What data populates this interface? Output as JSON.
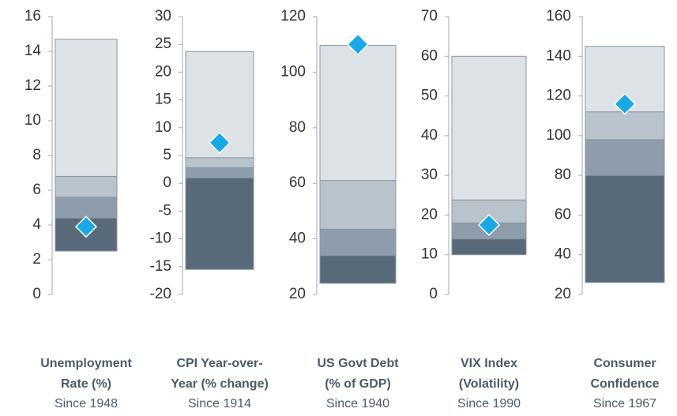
{
  "chart_data": [
    {
      "type": "range-bar",
      "title": [
        "Unemployment",
        "Rate (%)"
      ],
      "subtitle": "Since 1948",
      "ylim": [
        0,
        16
      ],
      "yticks": [
        0,
        2,
        4,
        6,
        8,
        10,
        12,
        14,
        16
      ],
      "levels": [
        2.5,
        4.4,
        5.6,
        6.8,
        14.7
      ],
      "marker": 3.9
    },
    {
      "type": "range-bar",
      "title": [
        "CPI Year-over-",
        "Year (% change)"
      ],
      "subtitle": "Since 1914",
      "ylim": [
        -20,
        30
      ],
      "yticks": [
        -20,
        -15,
        -10,
        -5,
        0,
        5,
        10,
        15,
        20,
        25,
        30
      ],
      "negative_tick_color": "#e00000",
      "levels": [
        -15.5,
        1,
        2.8,
        4.6,
        23.7
      ],
      "marker": 7.3
    },
    {
      "type": "range-bar",
      "title": [
        "US Govt Debt",
        "(% of GDP)"
      ],
      "subtitle": "Since 1940",
      "ylim": [
        20,
        120
      ],
      "yticks": [
        20,
        40,
        60,
        80,
        100,
        120
      ],
      "levels": [
        24,
        34,
        43.5,
        61,
        109.6
      ],
      "marker": 110
    },
    {
      "type": "range-bar",
      "title": [
        "VIX Index",
        "(Volatility)"
      ],
      "subtitle": "Since 1990",
      "ylim": [
        0,
        70
      ],
      "yticks": [
        0,
        10,
        20,
        30,
        40,
        50,
        60,
        70
      ],
      "levels": [
        10,
        14,
        18,
        23.8,
        60
      ],
      "marker": 17.5
    },
    {
      "type": "range-bar",
      "title": [
        "Consumer",
        "Confidence"
      ],
      "subtitle": "Since 1967",
      "ylim": [
        20,
        160
      ],
      "yticks": [
        20,
        40,
        60,
        80,
        100,
        120,
        140,
        160
      ],
      "levels": [
        26,
        80,
        98,
        112,
        145
      ],
      "marker": 116
    }
  ]
}
